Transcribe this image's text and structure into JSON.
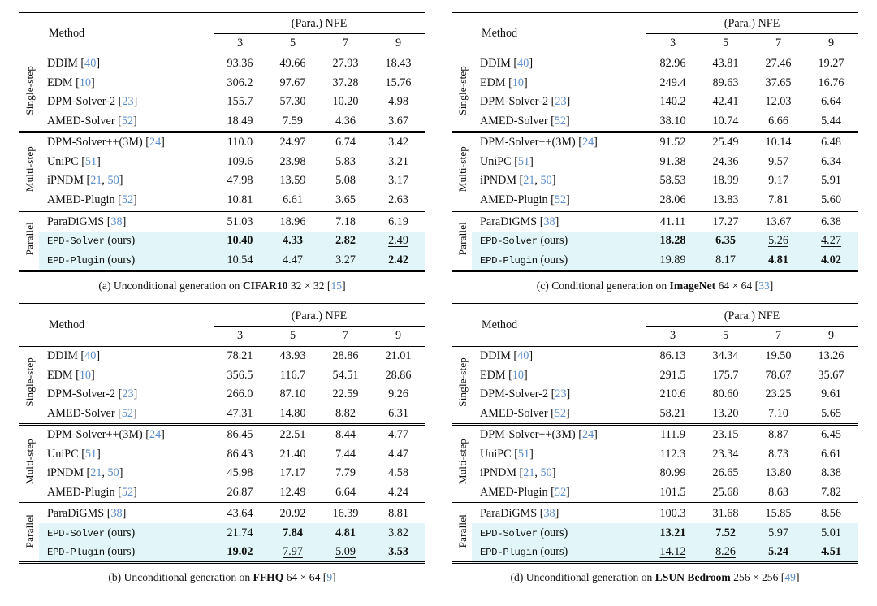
{
  "colors": {
    "citation_blue": "#5b8cc8",
    "highlight_row": "#e2f6f9",
    "rule_black": "#000000",
    "text": "#111111",
    "background": "#ffffff"
  },
  "table_header": {
    "method": "Method",
    "nfe_group": "(Para.) NFE",
    "nfe_columns": [
      "3",
      "5",
      "7",
      "9"
    ]
  },
  "group_labels": [
    "Single-step",
    "Multi-step",
    "Parallel"
  ],
  "tables": [
    {
      "id": "a",
      "caption": {
        "label": "(a)",
        "prefix": "Unconditional generation on",
        "dataset": "CIFAR10",
        "resolution": "32 × 32",
        "cite": "15"
      },
      "groups": [
        {
          "label": "Single-step",
          "rows": [
            {
              "method": "DDIM",
              "cites": [
                "40"
              ],
              "values": [
                "93.36",
                "49.66",
                "27.93",
                "18.43"
              ]
            },
            {
              "method": "EDM",
              "cites": [
                "10"
              ],
              "values": [
                "306.2",
                "97.67",
                "37.28",
                "15.76"
              ]
            },
            {
              "method": "DPM-Solver-2",
              "cites": [
                "23"
              ],
              "values": [
                "155.7",
                "57.30",
                "10.20",
                "4.98"
              ]
            },
            {
              "method": "AMED-Solver",
              "cites": [
                "52"
              ],
              "values": [
                "18.49",
                "7.59",
                "4.36",
                "3.67"
              ]
            }
          ]
        },
        {
          "label": "Multi-step",
          "rows": [
            {
              "method": "DPM-Solver++(3M)",
              "cites": [
                "24"
              ],
              "values": [
                "110.0",
                "24.97",
                "6.74",
                "3.42"
              ]
            },
            {
              "method": "UniPC",
              "cites": [
                "51"
              ],
              "values": [
                "109.6",
                "23.98",
                "5.83",
                "3.21"
              ]
            },
            {
              "method": "iPNDM",
              "cites": [
                "21",
                "50"
              ],
              "values": [
                "47.98",
                "13.59",
                "5.08",
                "3.17"
              ]
            },
            {
              "method": "AMED-Plugin",
              "cites": [
                "52"
              ],
              "values": [
                "10.81",
                "6.61",
                "3.65",
                "2.63"
              ]
            }
          ]
        },
        {
          "label": "Parallel",
          "rows": [
            {
              "method": "ParaDiGMS",
              "cites": [
                "38"
              ],
              "values": [
                "51.03",
                "18.96",
                "7.18",
                "6.19"
              ]
            },
            {
              "method": "EPD-Solver",
              "mono": true,
              "suffix": "(ours)",
              "highlight": true,
              "values": [
                {
                  "v": "10.40",
                  "s": "b"
                },
                {
                  "v": "4.33",
                  "s": "b"
                },
                {
                  "v": "2.82",
                  "s": "b"
                },
                {
                  "v": "2.49",
                  "s": "u"
                }
              ]
            },
            {
              "method": "EPD-Plugin",
              "mono": true,
              "suffix": "(ours)",
              "highlight": true,
              "values": [
                {
                  "v": "10.54",
                  "s": "u"
                },
                {
                  "v": "4.47",
                  "s": "u"
                },
                {
                  "v": "3.27",
                  "s": "u"
                },
                {
                  "v": "2.42",
                  "s": "b"
                }
              ]
            }
          ]
        }
      ]
    },
    {
      "id": "b",
      "caption": {
        "label": "(b)",
        "prefix": "Unconditional generation on",
        "dataset": "FFHQ",
        "resolution": "64 × 64",
        "cite": "9"
      },
      "groups": [
        {
          "label": "Single-step",
          "rows": [
            {
              "method": "DDIM",
              "cites": [
                "40"
              ],
              "values": [
                "78.21",
                "43.93",
                "28.86",
                "21.01"
              ]
            },
            {
              "method": "EDM",
              "cites": [
                "10"
              ],
              "values": [
                "356.5",
                "116.7",
                "54.51",
                "28.86"
              ]
            },
            {
              "method": "DPM-Solver-2",
              "cites": [
                "23"
              ],
              "values": [
                "266.0",
                "87.10",
                "22.59",
                "9.26"
              ]
            },
            {
              "method": "AMED-Solver",
              "cites": [
                "52"
              ],
              "values": [
                "47.31",
                "14.80",
                "8.82",
                "6.31"
              ]
            }
          ]
        },
        {
          "label": "Multi-step",
          "rows": [
            {
              "method": "DPM-Solver++(3M)",
              "cites": [
                "24"
              ],
              "values": [
                "86.45",
                "22.51",
                "8.44",
                "4.77"
              ]
            },
            {
              "method": "UniPC",
              "cites": [
                "51"
              ],
              "values": [
                "86.43",
                "21.40",
                "7.44",
                "4.47"
              ]
            },
            {
              "method": "iPNDM",
              "cites": [
                "21",
                "50"
              ],
              "values": [
                "45.98",
                "17.17",
                "7.79",
                "4.58"
              ]
            },
            {
              "method": "AMED-Plugin",
              "cites": [
                "52"
              ],
              "values": [
                "26.87",
                "12.49",
                "6.64",
                "4.24"
              ]
            }
          ]
        },
        {
          "label": "Parallel",
          "rows": [
            {
              "method": "ParaDiGMS",
              "cites": [
                "38"
              ],
              "values": [
                "43.64",
                "20.92",
                "16.39",
                "8.81"
              ]
            },
            {
              "method": "EPD-Solver",
              "mono": true,
              "suffix": "(ours)",
              "highlight": true,
              "values": [
                {
                  "v": "21.74",
                  "s": "u"
                },
                {
                  "v": "7.84",
                  "s": "b"
                },
                {
                  "v": "4.81",
                  "s": "b"
                },
                {
                  "v": "3.82",
                  "s": "u"
                }
              ]
            },
            {
              "method": "EPD-Plugin",
              "mono": true,
              "suffix": "(ours)",
              "highlight": true,
              "values": [
                {
                  "v": "19.02",
                  "s": "b"
                },
                {
                  "v": "7.97",
                  "s": "u"
                },
                {
                  "v": "5.09",
                  "s": "u"
                },
                {
                  "v": "3.53",
                  "s": "b"
                }
              ]
            }
          ]
        }
      ]
    },
    {
      "id": "c",
      "caption": {
        "label": "(c)",
        "prefix": "Conditional generation on",
        "dataset": "ImageNet",
        "resolution": "64 × 64",
        "cite": "33"
      },
      "groups": [
        {
          "label": "Single-step",
          "rows": [
            {
              "method": "DDIM",
              "cites": [
                "40"
              ],
              "values": [
                "82.96",
                "43.81",
                "27.46",
                "19.27"
              ]
            },
            {
              "method": "EDM",
              "cites": [
                "10"
              ],
              "values": [
                "249.4",
                "89.63",
                "37.65",
                "16.76"
              ]
            },
            {
              "method": "DPM-Solver-2",
              "cites": [
                "23"
              ],
              "values": [
                "140.2",
                "42.41",
                "12.03",
                "6.64"
              ]
            },
            {
              "method": "AMED-Solver",
              "cites": [
                "52"
              ],
              "values": [
                "38.10",
                "10.74",
                "6.66",
                "5.44"
              ]
            }
          ]
        },
        {
          "label": "Multi-step",
          "rows": [
            {
              "method": "DPM-Solver++(3M)",
              "cites": [
                "24"
              ],
              "values": [
                "91.52",
                "25.49",
                "10.14",
                "6.48"
              ]
            },
            {
              "method": "UniPC",
              "cites": [
                "51"
              ],
              "values": [
                "91.38",
                "24.36",
                "9.57",
                "6.34"
              ]
            },
            {
              "method": "iPNDM",
              "cites": [
                "21",
                "50"
              ],
              "values": [
                "58.53",
                "18.99",
                "9.17",
                "5.91"
              ]
            },
            {
              "method": "AMED-Plugin",
              "cites": [
                "52"
              ],
              "values": [
                "28.06",
                "13.83",
                "7.81",
                "5.60"
              ]
            }
          ]
        },
        {
          "label": "Parallel",
          "rows": [
            {
              "method": "ParaDiGMS",
              "cites": [
                "38"
              ],
              "values": [
                "41.11",
                "17.27",
                "13.67",
                "6.38"
              ]
            },
            {
              "method": "EPD-Solver",
              "mono": true,
              "suffix": "(ours)",
              "highlight": true,
              "values": [
                {
                  "v": "18.28",
                  "s": "b"
                },
                {
                  "v": "6.35",
                  "s": "b"
                },
                {
                  "v": "5.26",
                  "s": "u"
                },
                {
                  "v": "4.27",
                  "s": "u"
                }
              ]
            },
            {
              "method": "EPD-Plugin",
              "mono": true,
              "suffix": "(ours)",
              "highlight": true,
              "values": [
                {
                  "v": "19.89",
                  "s": "u"
                },
                {
                  "v": "8.17",
                  "s": "u"
                },
                {
                  "v": "4.81",
                  "s": "b"
                },
                {
                  "v": "4.02",
                  "s": "b"
                }
              ]
            }
          ]
        }
      ]
    },
    {
      "id": "d",
      "caption": {
        "label": "(d)",
        "prefix": "Unconditional generation on",
        "dataset": "LSUN Bedroom",
        "resolution": "256 × 256",
        "cite": "49"
      },
      "groups": [
        {
          "label": "Single-step",
          "rows": [
            {
              "method": "DDIM",
              "cites": [
                "40"
              ],
              "values": [
                "86.13",
                "34.34",
                "19.50",
                "13.26"
              ]
            },
            {
              "method": "EDM",
              "cites": [
                "10"
              ],
              "values": [
                "291.5",
                "175.7",
                "78.67",
                "35.67"
              ]
            },
            {
              "method": "DPM-Solver-2",
              "cites": [
                "23"
              ],
              "values": [
                "210.6",
                "80.60",
                "23.25",
                "9.61"
              ]
            },
            {
              "method": "AMED-Solver",
              "cites": [
                "52"
              ],
              "values": [
                "58.21",
                "13.20",
                "7.10",
                "5.65"
              ]
            }
          ]
        },
        {
          "label": "Multi-step",
          "rows": [
            {
              "method": "DPM-Solver++(3M)",
              "cites": [
                "24"
              ],
              "values": [
                "111.9",
                "23.15",
                "8.87",
                "6.45"
              ]
            },
            {
              "method": "UniPC",
              "cites": [
                "51"
              ],
              "values": [
                "112.3",
                "23.34",
                "8.73",
                "6.61"
              ]
            },
            {
              "method": "iPNDM",
              "cites": [
                "21",
                "50"
              ],
              "values": [
                "80.99",
                "26.65",
                "13.80",
                "8.38"
              ]
            },
            {
              "method": "AMED-Plugin",
              "cites": [
                "52"
              ],
              "values": [
                "101.5",
                "25.68",
                "8.63",
                "7.82"
              ]
            }
          ]
        },
        {
          "label": "Parallel",
          "rows": [
            {
              "method": "ParaDiGMS",
              "cites": [
                "38"
              ],
              "values": [
                "100.3",
                "31.68",
                "15.85",
                "8.56"
              ]
            },
            {
              "method": "EPD-Solver",
              "mono": true,
              "suffix": "(ours)",
              "highlight": true,
              "values": [
                {
                  "v": "13.21",
                  "s": "b"
                },
                {
                  "v": "7.52",
                  "s": "b"
                },
                {
                  "v": "5.97",
                  "s": "u"
                },
                {
                  "v": "5.01",
                  "s": "u"
                }
              ]
            },
            {
              "method": "EPD-Plugin",
              "mono": true,
              "suffix": "(ours)",
              "highlight": true,
              "values": [
                {
                  "v": "14.12",
                  "s": "u"
                },
                {
                  "v": "8.26",
                  "s": "u"
                },
                {
                  "v": "5.24",
                  "s": "b"
                },
                {
                  "v": "4.51",
                  "s": "b"
                }
              ]
            }
          ]
        }
      ]
    }
  ]
}
